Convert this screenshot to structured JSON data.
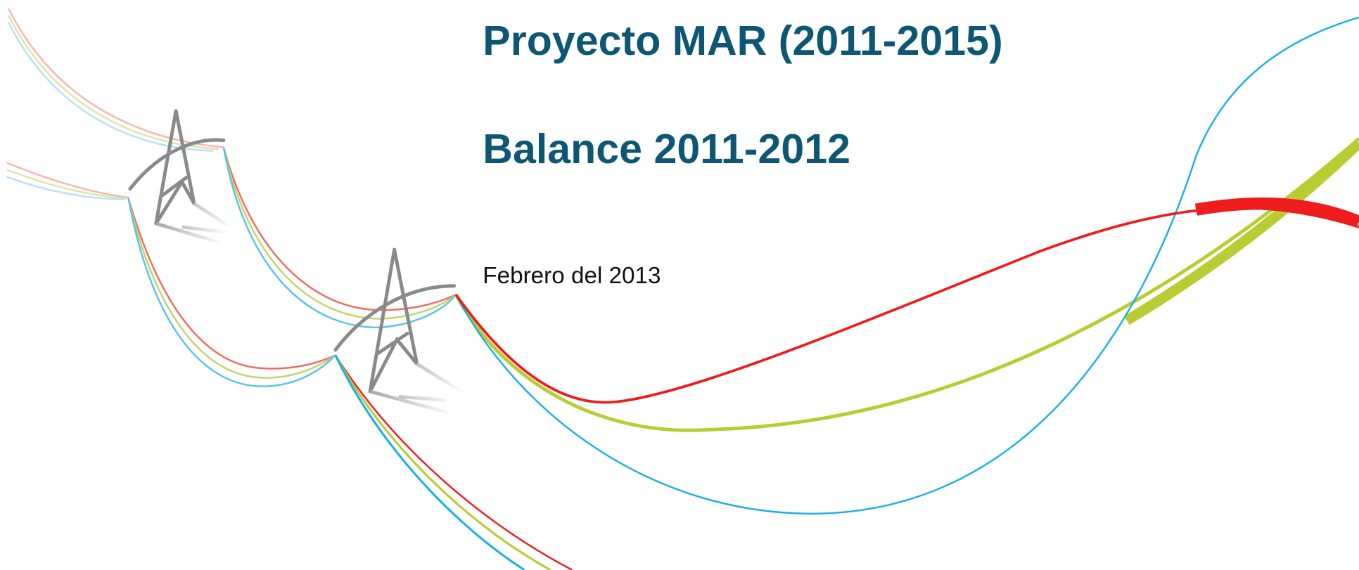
{
  "cover": {
    "title": "Proyecto MAR (2011-2015)",
    "subtitle": "Balance 2011-2012",
    "date": "Febrero del 2013"
  }
}
